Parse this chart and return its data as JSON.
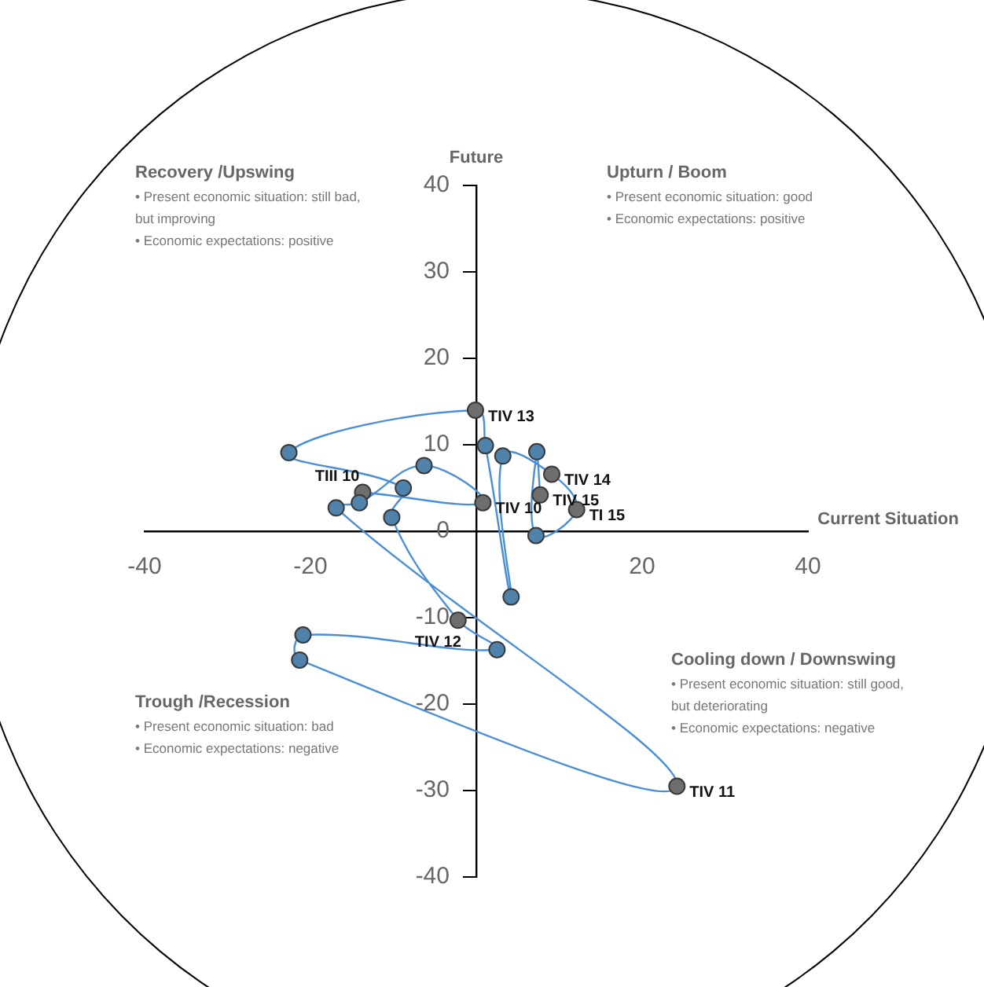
{
  "chart_data": {
    "type": "line",
    "xlabel": "Current Situation",
    "ylabel": "Future",
    "xlim": [
      -40,
      40
    ],
    "xticks": [
      -40,
      -20,
      20,
      40
    ],
    "ylim": [
      -40,
      40
    ],
    "yticks": [
      -40,
      -30,
      -20,
      -10,
      0,
      10,
      20,
      30,
      40
    ],
    "grid": false,
    "marker": "circle",
    "line_style": "solid",
    "series": [
      {
        "color": "#4a8fd6",
        "x": [
          -13.7,
          0.8,
          -6.3,
          -14.1,
          -16.9,
          24.2,
          -21.3,
          -20.9,
          2.5,
          -2.2,
          -10.2,
          -8.8,
          -22.6,
          -0.1,
          1.1,
          4.2,
          3.2,
          9.1,
          12.1,
          7.2,
          7.3,
          7.7
        ],
        "values": [
          4.5,
          3.3,
          7.6,
          3.3,
          2.7,
          -29.5,
          -14.9,
          -12.0,
          -13.7,
          -10.3,
          1.6,
          5.0,
          9.1,
          14.0,
          9.9,
          -7.6,
          8.7,
          6.6,
          2.5,
          -0.5,
          9.2,
          4.2
        ],
        "colors": [
          "#6e6e6e",
          "#6e6e6e",
          "#4f83ab",
          "#4f83ab",
          "#4f83ab",
          "#6e6e6e",
          "#4f83ab",
          "#4f83ab",
          "#4f83ab",
          "#6e6e6e",
          "#4f83ab",
          "#4f83ab",
          "#4f83ab",
          "#6e6e6e",
          "#4f83ab",
          "#4f83ab",
          "#4f83ab",
          "#6e6e6e",
          "#6e6e6e",
          "#4f83ab",
          "#4f83ab",
          "#6e6e6e"
        ]
      }
    ],
    "annotations": [
      {
        "text": "TIII 10",
        "x": -13.7,
        "y": 4.5
      },
      {
        "text": "TIV 10",
        "x": 0.8,
        "y": 3.3
      },
      {
        "text": "TIV 11",
        "x": 24.2,
        "y": -29.5
      },
      {
        "text": "TIV 12",
        "x": -2.2,
        "y": -10.3
      },
      {
        "text": "TIV 13",
        "x": -0.1,
        "y": 14.0
      },
      {
        "text": "TIV 14",
        "x": 9.1,
        "y": 6.6
      },
      {
        "text": "TI 15",
        "x": 12.1,
        "y": 2.5
      },
      {
        "text": "TIV 15",
        "x": 7.7,
        "y": 4.2
      },
      "Recovery /Upswing\n• Present economic situation: still bad, but improving\n• Economic expectations: positive",
      "Upturn / Boom\n• Present economic situation: good\n• Economic expectations: positive",
      "Trough /Recession\n• Present economic situation: bad\n• Economic expectations: negative",
      "Cooling down / Downswing\n• Present economic situation: still good, but deteriorating\n• Economic expectations: negative"
    ]
  }
}
